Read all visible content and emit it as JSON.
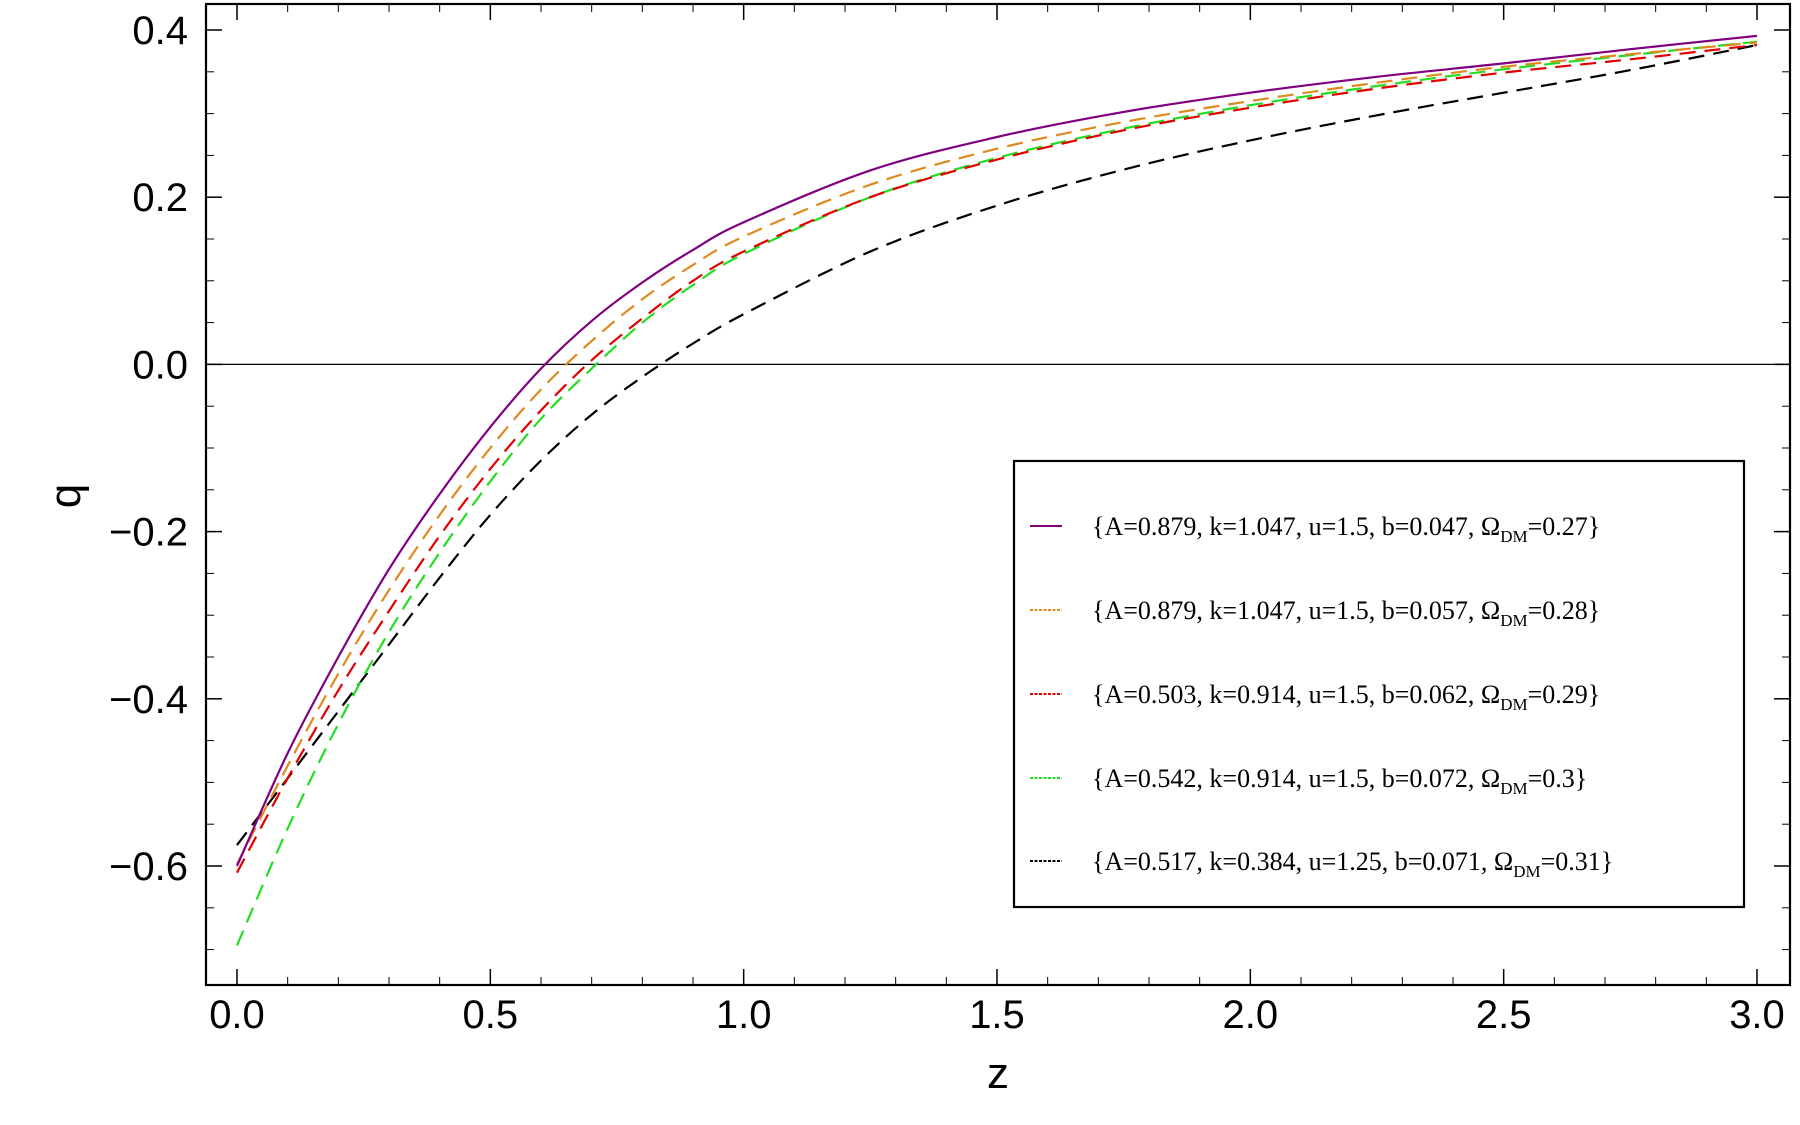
{
  "chart_data": {
    "type": "line",
    "title": "",
    "xlabel": "z",
    "ylabel": "q",
    "xlim": [
      0.0,
      3.0
    ],
    "ylim": [
      -0.73,
      0.43
    ],
    "x_ticks": [
      "0.0",
      "0.5",
      "1.0",
      "1.5",
      "2.0",
      "2.5",
      "3.0"
    ],
    "x_tick_values": [
      0.0,
      0.5,
      1.0,
      1.5,
      2.0,
      2.5,
      3.0
    ],
    "y_ticks": [
      "0.4",
      "0.2",
      "0.0",
      "−0.2",
      "−0.4",
      "−0.6"
    ],
    "y_tick_values": [
      0.4,
      0.2,
      0.0,
      -0.2,
      -0.4,
      -0.6
    ],
    "zero_line": true,
    "grid": false,
    "legend_position": "right-center",
    "x": [
      0.0,
      0.1,
      0.2,
      0.3,
      0.4,
      0.5,
      0.6,
      0.7,
      0.8,
      0.9,
      1.0,
      1.25,
      1.5,
      1.75,
      2.0,
      2.25,
      2.5,
      2.75,
      3.0
    ],
    "series": [
      {
        "legend_main": "{A=0.879, k=1.047, u=1.5, b=0.047, Ω",
        "legend_sub": "DM",
        "legend_tail": "=0.27}",
        "color": "#800080",
        "dash": "solid",
        "values": [
          -0.6,
          -0.465,
          -0.35,
          -0.245,
          -0.155,
          -0.075,
          -0.005,
          0.052,
          0.098,
          0.137,
          0.17,
          0.232,
          0.272,
          0.302,
          0.325,
          0.344,
          0.36,
          0.377,
          0.393
        ]
      },
      {
        "legend_main": "{A=0.879, k=1.047, u=1.5, b=0.057, Ω",
        "legend_sub": "DM",
        "legend_tail": "=0.28}",
        "color": "#E08A1E",
        "dash": "dashed",
        "values": [
          -0.598,
          -0.48,
          -0.37,
          -0.27,
          -0.18,
          -0.1,
          -0.03,
          0.028,
          0.078,
          0.119,
          0.153,
          0.215,
          0.258,
          0.29,
          0.315,
          0.337,
          0.356,
          0.371,
          0.385
        ]
      },
      {
        "legend_main": "{A=0.503, k=0.914, u=1.5, b=0.062, Ω",
        "legend_sub": "DM",
        "legend_tail": "=0.29}",
        "color": "#E00000",
        "dash": "dashed",
        "values": [
          -0.608,
          -0.495,
          -0.39,
          -0.295,
          -0.205,
          -0.125,
          -0.055,
          0.005,
          0.055,
          0.1,
          0.135,
          0.2,
          0.245,
          0.28,
          0.307,
          0.33,
          0.349,
          0.365,
          0.382
        ]
      },
      {
        "legend_main": "{A=0.542, k=0.914, u=1.5, b=0.072, Ω",
        "legend_sub": "DM",
        "legend_tail": "=0.3}",
        "color": "#22DD22",
        "dash": "dashed",
        "values": [
          -0.695,
          -0.555,
          -0.43,
          -0.32,
          -0.225,
          -0.14,
          -0.065,
          -0.005,
          0.05,
          0.095,
          0.132,
          0.2,
          0.247,
          0.282,
          0.31,
          0.333,
          0.353,
          0.37,
          0.386
        ]
      },
      {
        "legend_main": "{A=0.517, k=0.384, u=1.25, b=0.071, Ω",
        "legend_sub": "DM",
        "legend_tail": "=0.31}",
        "color": "#000000",
        "dash": "dashed",
        "values": [
          -0.575,
          -0.495,
          -0.415,
          -0.335,
          -0.255,
          -0.18,
          -0.115,
          -0.06,
          -0.015,
          0.025,
          0.06,
          0.135,
          0.19,
          0.233,
          0.268,
          0.298,
          0.325,
          0.352,
          0.382
        ]
      }
    ]
  }
}
